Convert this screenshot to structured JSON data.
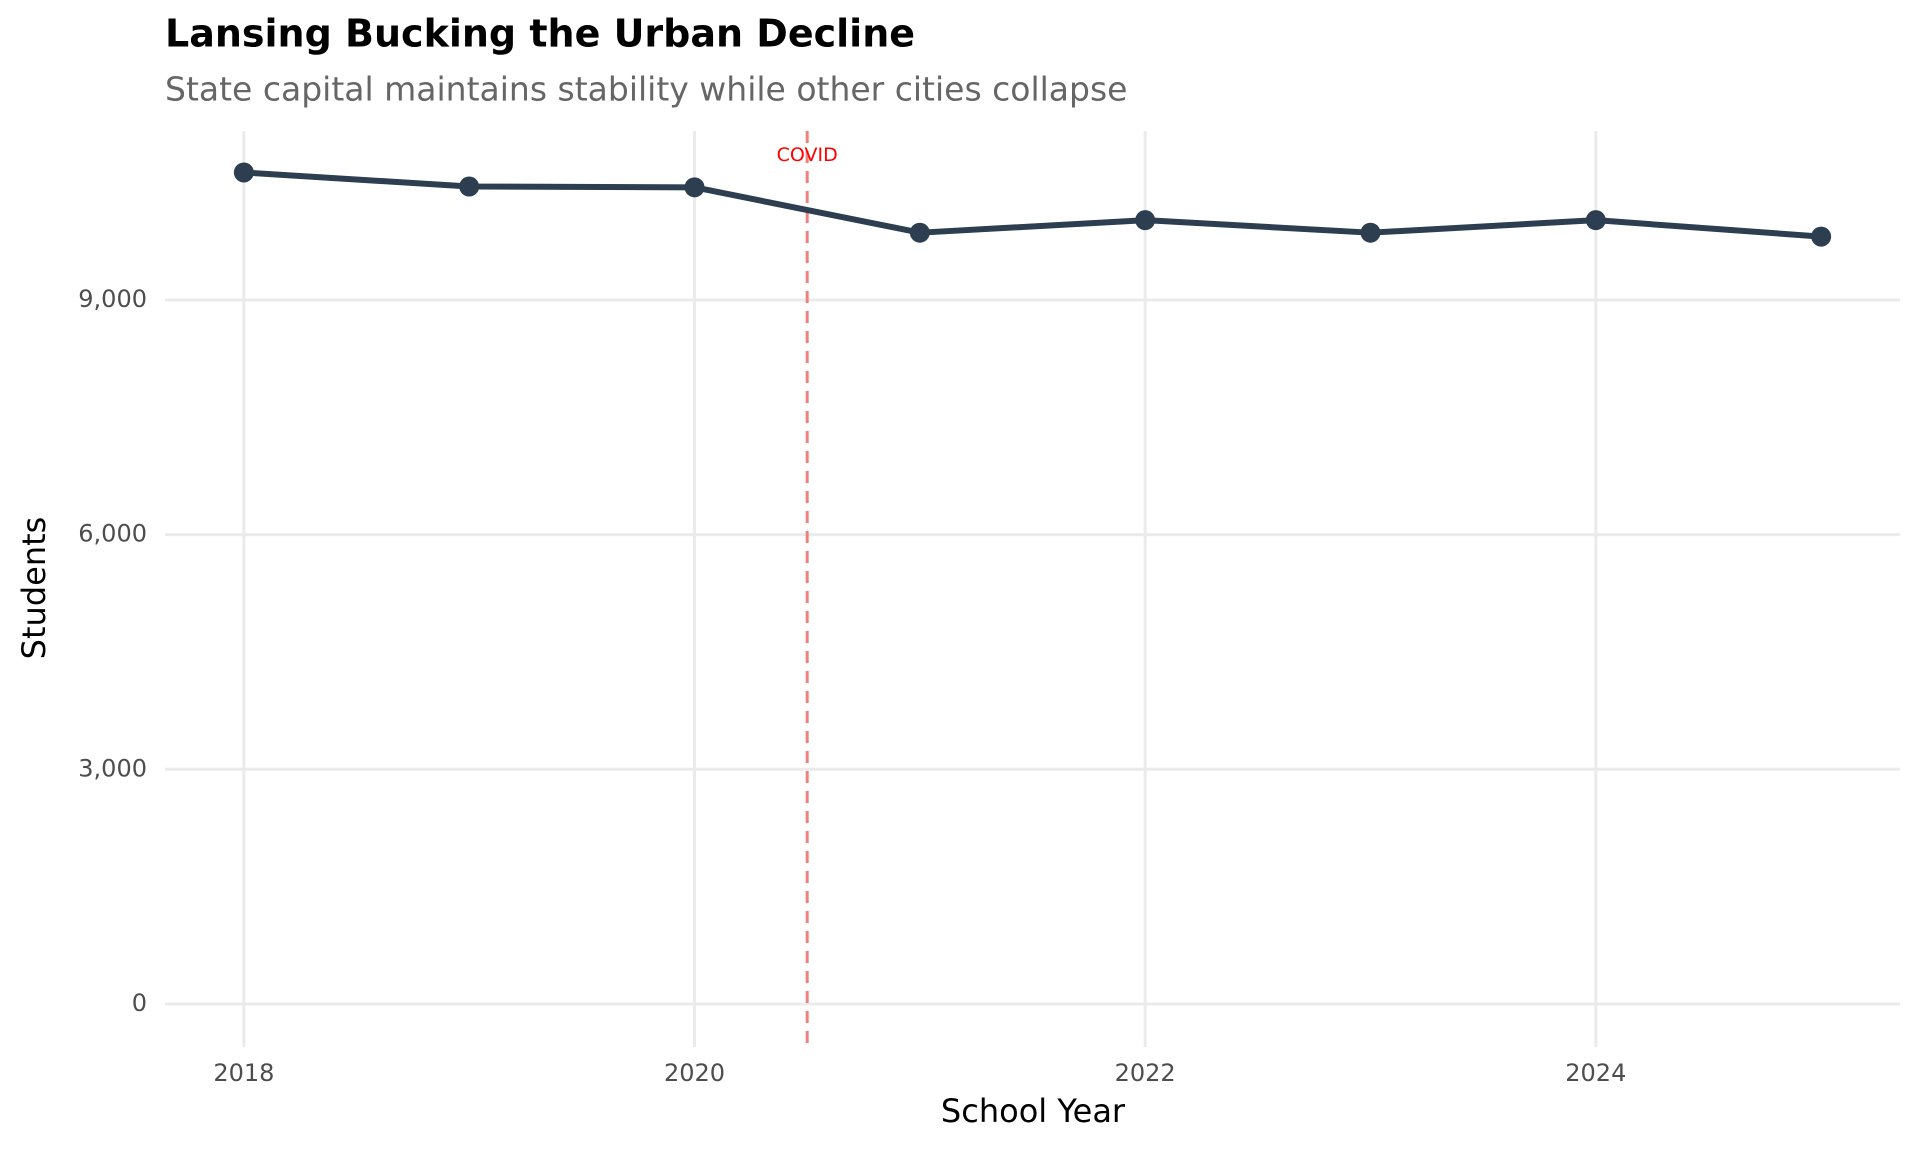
{
  "chart_data": {
    "type": "line",
    "title": "Lansing Bucking the Urban Decline",
    "subtitle": "State capital maintains stability while other cities collapse",
    "x_label": "School Year",
    "y_label": "Students",
    "x": [
      2018,
      2019,
      2020,
      2021,
      2022,
      2023,
      2024,
      2025
    ],
    "values": [
      10630,
      10450,
      10440,
      9860,
      10020,
      9860,
      10020,
      9810
    ],
    "color": "#2c3e50",
    "xlim": [
      2017.65,
      2025.35
    ],
    "xticks": [
      2018,
      2020,
      2022,
      2024
    ],
    "ylim": [
      -550,
      11160
    ],
    "yticks": [
      0,
      {
        "value": 3000,
        "label": "3,000"
      },
      {
        "value": 6000,
        "label": "6,000"
      },
      {
        "value": 9000,
        "label": "9,000"
      }
    ],
    "grid": true,
    "annotations": [
      {
        "x": 2020.5,
        "label_y": 10845,
        "text": "COVID",
        "color": "#f08080",
        "text_color": "#ff0000"
      }
    ]
  }
}
